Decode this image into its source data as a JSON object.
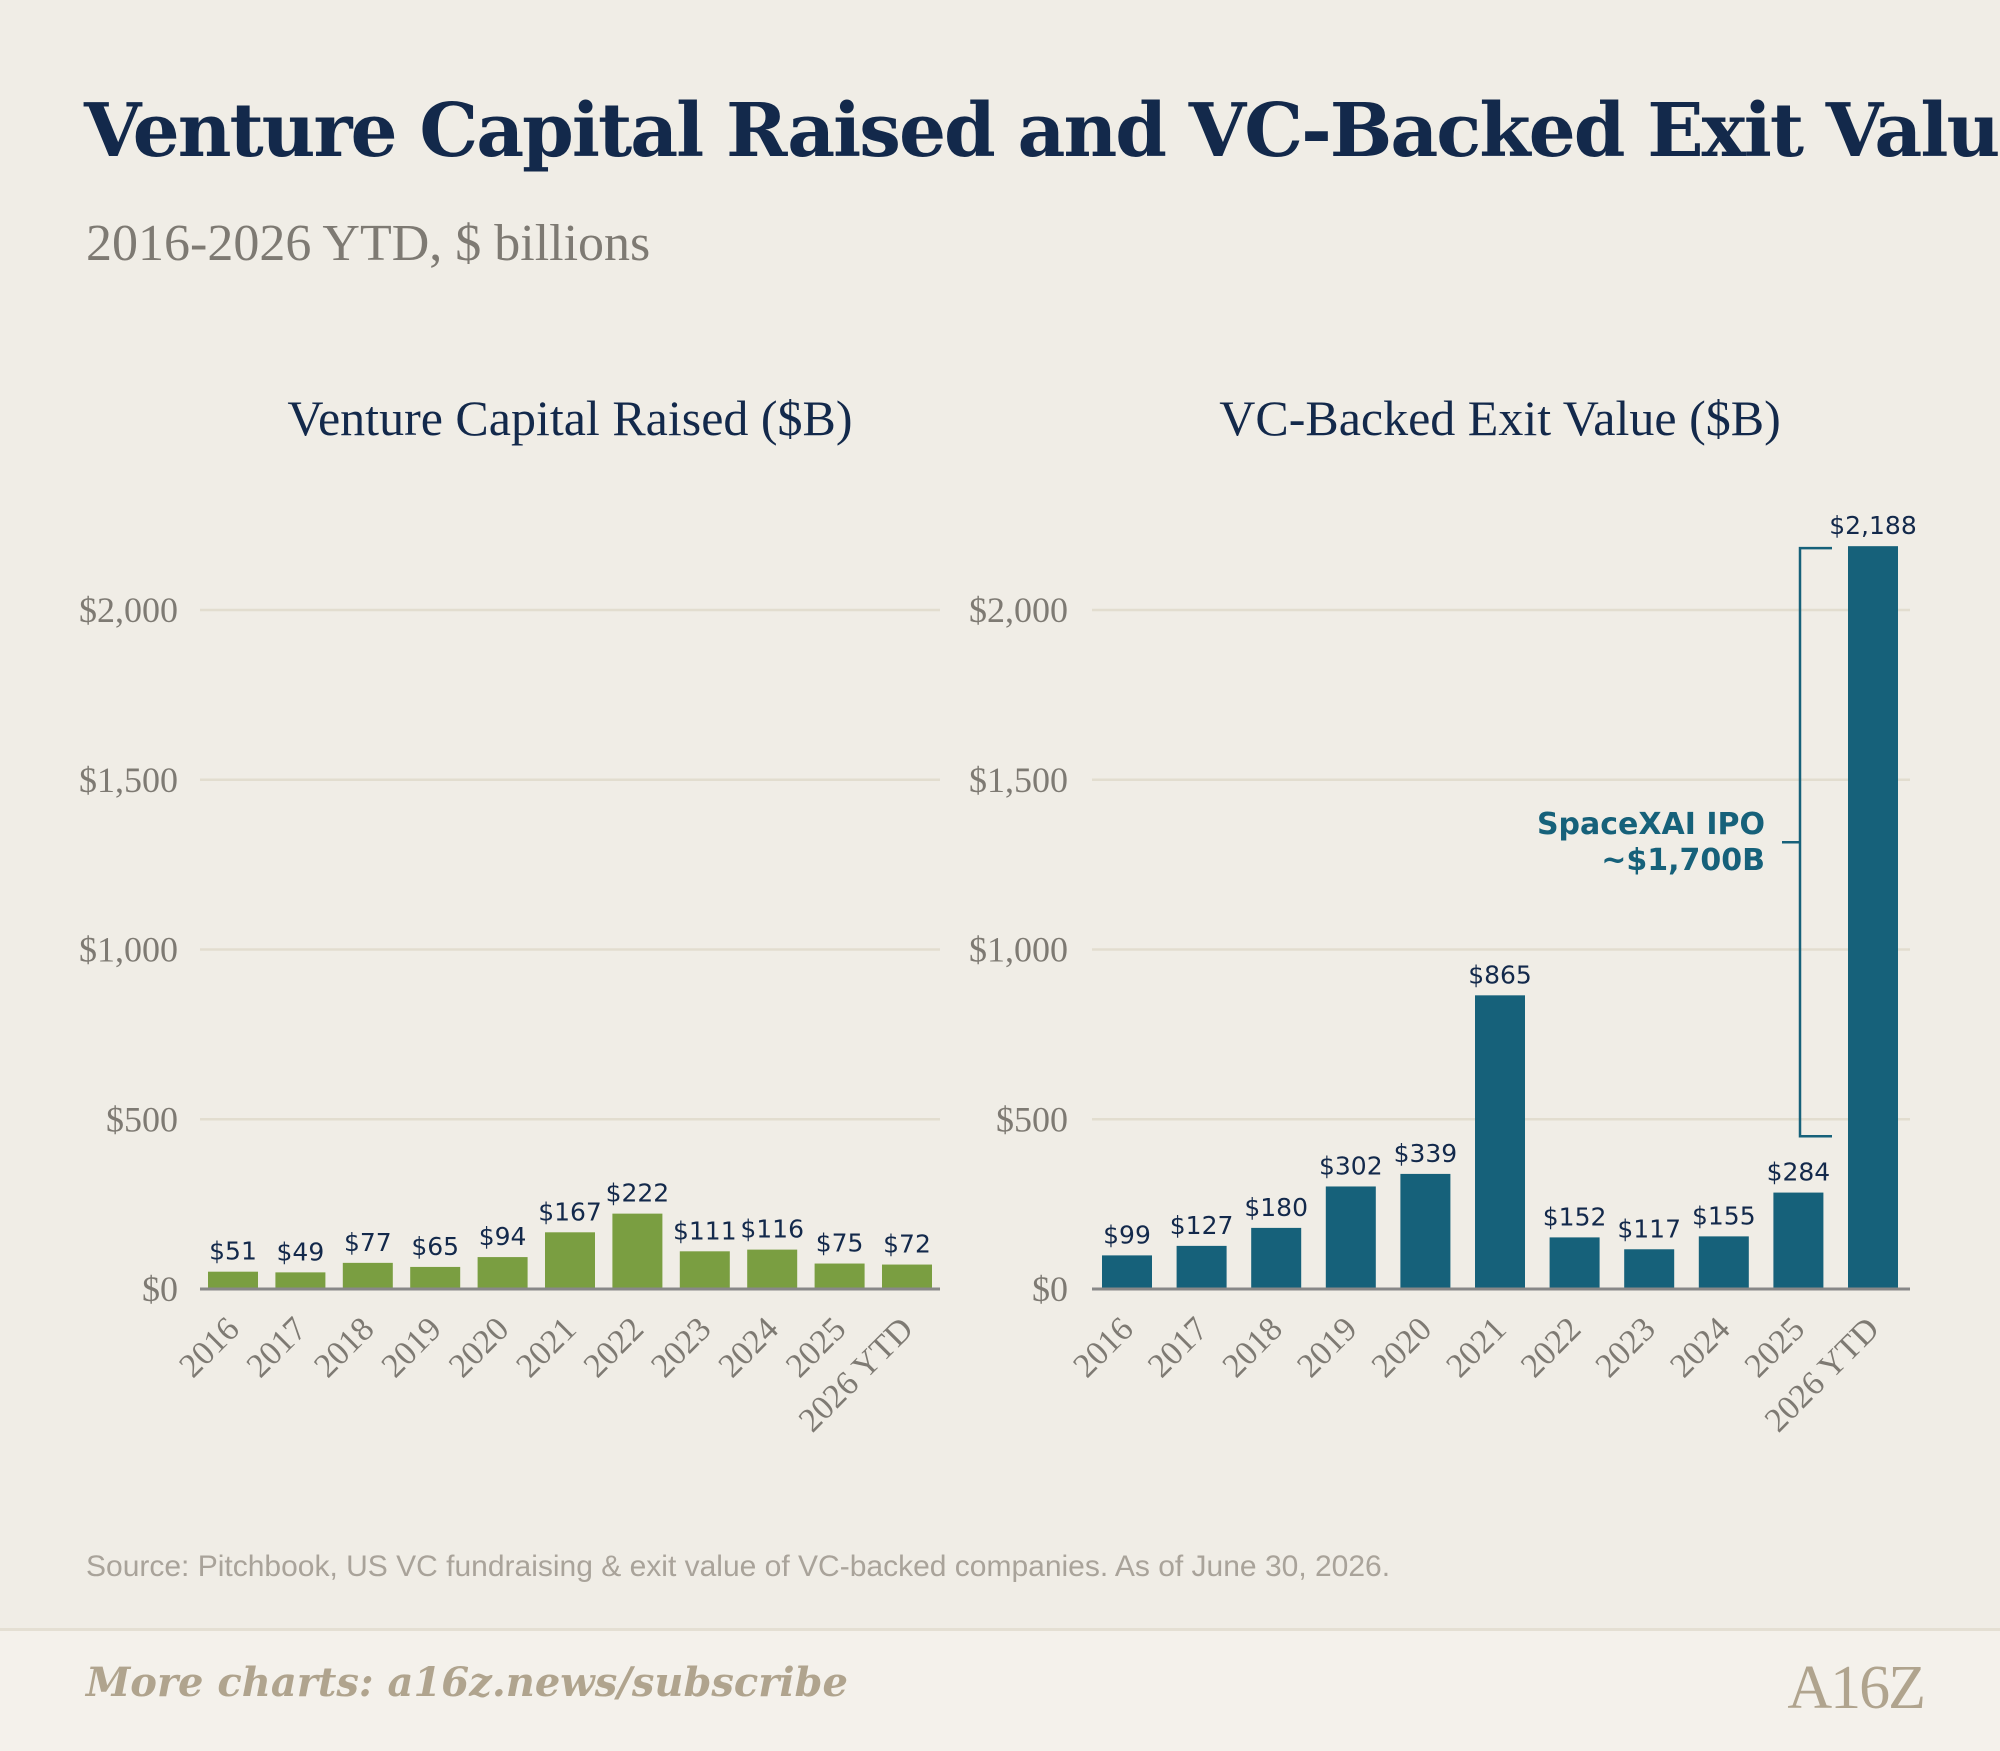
{
  "title": "Venture Capital Raised and VC-Backed Exit Value",
  "subtitle": "2016-2026 YTD, $ billions",
  "source": "Source: Pitchbook, US VC fundraising & exit value of VC-backed companies. As of June 30, 2026.",
  "footer": {
    "link": "More charts: a16z.news/subscribe",
    "logo": "A16Z"
  },
  "colors": {
    "raised": "#7a9e41",
    "exit": "#16617a",
    "title": "#13294b",
    "muted": "#7e7a73",
    "grid": "#e2ddcf",
    "axis": "#888888"
  },
  "chart_data": [
    {
      "type": "bar",
      "title": "Venture Capital Raised ($B)",
      "categories": [
        "2016",
        "2017",
        "2018",
        "2019",
        "2020",
        "2021",
        "2022",
        "2023",
        "2024",
        "2025",
        "2026 YTD"
      ],
      "values": [
        51,
        49,
        77,
        65,
        94,
        167,
        222,
        111,
        116,
        75,
        72
      ],
      "value_labels": [
        "$51",
        "$49",
        "$77",
        "$65",
        "$94",
        "$167",
        "$222",
        "$111",
        "$116",
        "$75",
        "$72"
      ],
      "yticks": [
        0,
        500,
        1000,
        1500,
        2000
      ],
      "ytick_labels": [
        "$0",
        "$500",
        "$1,000",
        "$1,500",
        "$2,000"
      ],
      "ylim": [
        0,
        2200
      ],
      "grid": true,
      "color": "#7a9e41"
    },
    {
      "type": "bar",
      "title": "VC-Backed Exit Value ($B)",
      "categories": [
        "2016",
        "2017",
        "2018",
        "2019",
        "2020",
        "2021",
        "2022",
        "2023",
        "2024",
        "2025",
        "2026 YTD"
      ],
      "values": [
        99,
        127,
        180,
        302,
        339,
        865,
        152,
        117,
        155,
        284,
        2188
      ],
      "value_labels": [
        "$99",
        "$127",
        "$180",
        "$302",
        "$339",
        "$865",
        "$152",
        "$117",
        "$155",
        "$284",
        "$2,188"
      ],
      "yticks": [
        0,
        500,
        1000,
        1500,
        2000
      ],
      "ytick_labels": [
        "$0",
        "$500",
        "$1,000",
        "$1,500",
        "$2,000"
      ],
      "ylim": [
        0,
        2200
      ],
      "grid": true,
      "color": "#16617a",
      "annotation": {
        "lines": [
          "SpaceXAI IPO",
          "~$1,700B"
        ],
        "range": [
          450,
          2188
        ]
      }
    }
  ]
}
